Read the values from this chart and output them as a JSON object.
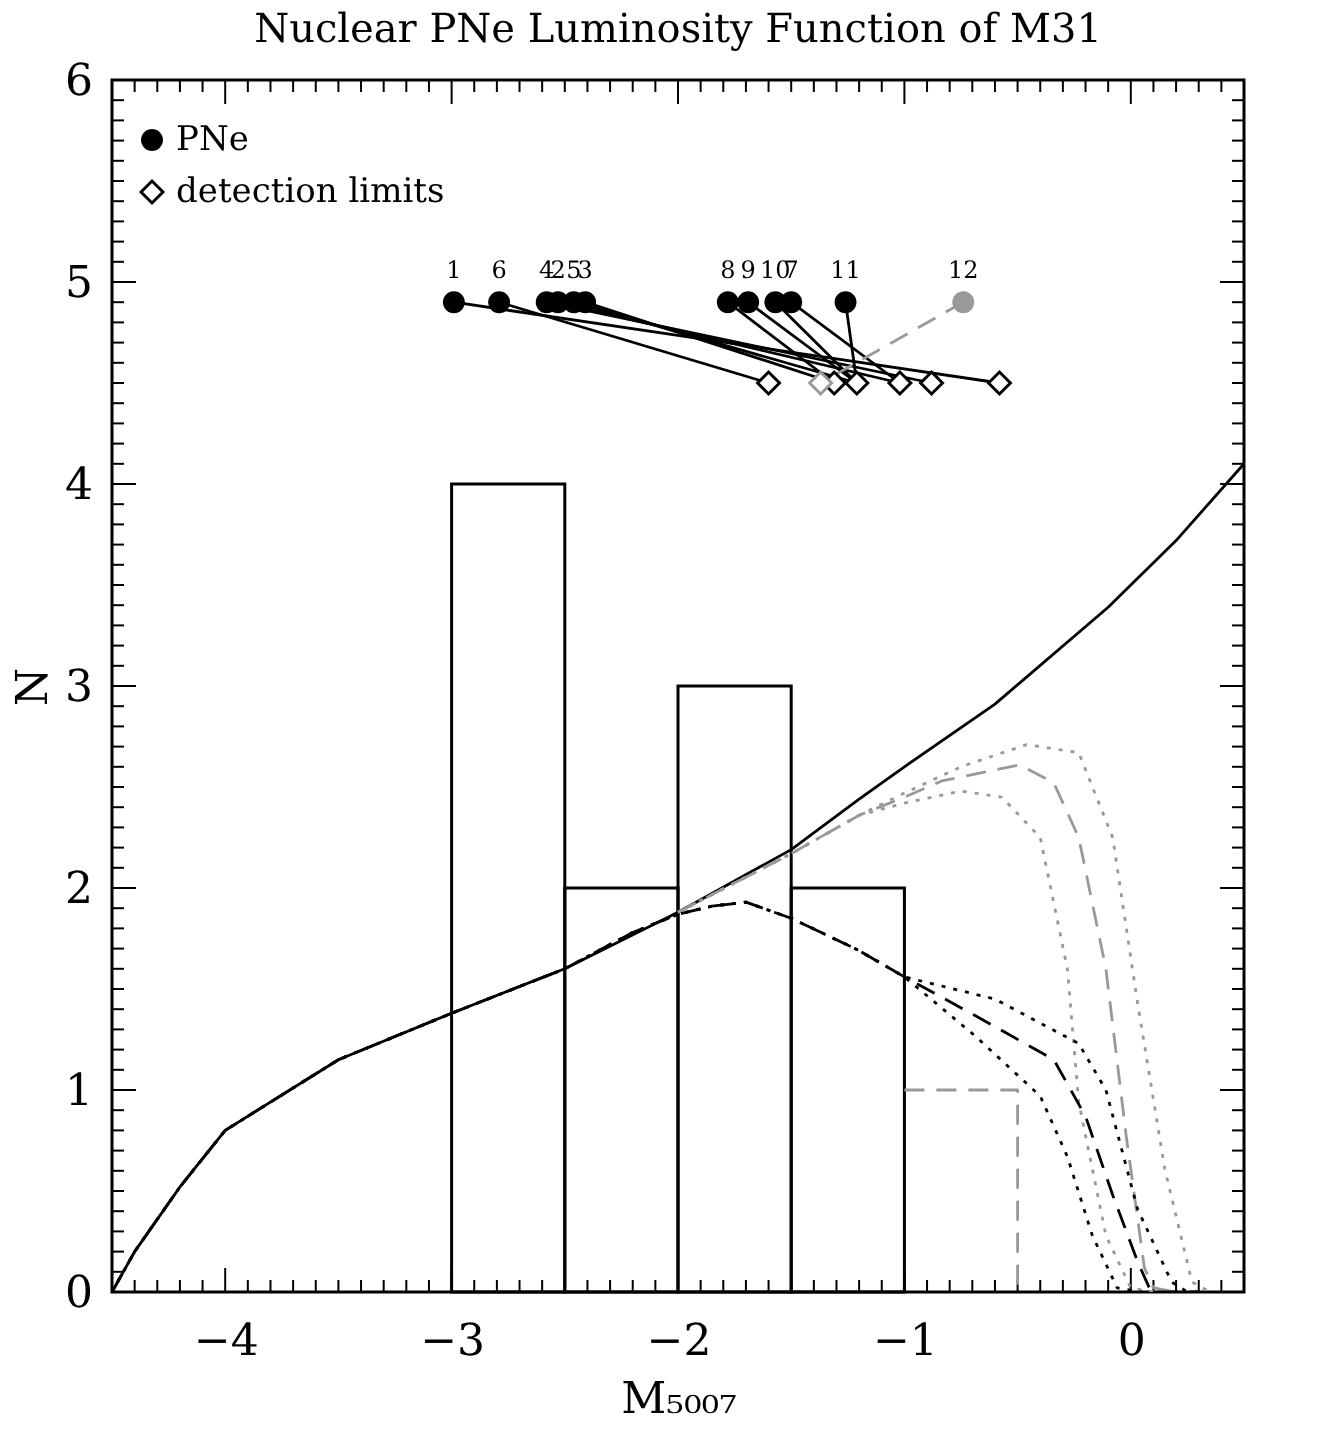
{
  "chart_data": {
    "type": "line",
    "title": "Nuclear PNe Luminosity Function of M31",
    "xlabel": "M₅₀₀₇",
    "ylabel": "N",
    "xlim": [
      -4.5,
      0.5
    ],
    "ylim": [
      0,
      6
    ],
    "xticks": [
      {
        "value": -4.4,
        "label": null
      },
      {
        "value": -4.3,
        "label": null
      },
      {
        "value": -4.2,
        "label": null
      },
      {
        "value": -4.1,
        "label": null
      },
      {
        "value": -4,
        "label": "−4"
      },
      {
        "value": -3.9,
        "label": null
      },
      {
        "value": -3.8,
        "label": null
      },
      {
        "value": -3.7,
        "label": null
      },
      {
        "value": -3.6,
        "label": null
      },
      {
        "value": -3.5,
        "label": null
      },
      {
        "value": -3.4,
        "label": null
      },
      {
        "value": -3.3,
        "label": null
      },
      {
        "value": -3.2,
        "label": null
      },
      {
        "value": -3.1,
        "label": null
      },
      {
        "value": -3,
        "label": "−3"
      },
      {
        "value": -2.9,
        "label": null
      },
      {
        "value": -2.8,
        "label": null
      },
      {
        "value": -2.7,
        "label": null
      },
      {
        "value": -2.6,
        "label": null
      },
      {
        "value": -2.5,
        "label": null
      },
      {
        "value": -2.4,
        "label": null
      },
      {
        "value": -2.3,
        "label": null
      },
      {
        "value": -2.2,
        "label": null
      },
      {
        "value": -2.1,
        "label": null
      },
      {
        "value": -2,
        "label": "−2"
      },
      {
        "value": -1.9,
        "label": null
      },
      {
        "value": -1.8,
        "label": null
      },
      {
        "value": -1.7,
        "label": null
      },
      {
        "value": -1.6,
        "label": null
      },
      {
        "value": -1.5,
        "label": null
      },
      {
        "value": -1.4,
        "label": null
      },
      {
        "value": -1.3,
        "label": null
      },
      {
        "value": -1.2,
        "label": null
      },
      {
        "value": -1.1,
        "label": null
      },
      {
        "value": -1,
        "label": "−1"
      },
      {
        "value": -0.9,
        "label": null
      },
      {
        "value": -0.8,
        "label": null
      },
      {
        "value": -0.7,
        "label": null
      },
      {
        "value": -0.6,
        "label": null
      },
      {
        "value": -0.5,
        "label": null
      },
      {
        "value": -0.4,
        "label": null
      },
      {
        "value": -0.3,
        "label": null
      },
      {
        "value": -0.2,
        "label": null
      },
      {
        "value": -0.1,
        "label": null
      },
      0,
      {
        "value": 0.1,
        "label": null
      },
      {
        "value": 0.2,
        "label": null
      },
      {
        "value": 0.3,
        "label": null
      },
      {
        "value": 0.4,
        "label": null
      }
    ],
    "yticks": [
      0,
      {
        "value": 0.1,
        "label": null
      },
      {
        "value": 0.2,
        "label": null
      },
      {
        "value": 0.3,
        "label": null
      },
      {
        "value": 0.4,
        "label": null
      },
      {
        "value": 0.5,
        "label": null
      },
      {
        "value": 0.6,
        "label": null
      },
      {
        "value": 0.7,
        "label": null
      },
      {
        "value": 0.8,
        "label": null
      },
      {
        "value": 0.9,
        "label": null
      },
      1,
      {
        "value": 1.1,
        "label": null
      },
      {
        "value": 1.2,
        "label": null
      },
      {
        "value": 1.3,
        "label": null
      },
      {
        "value": 1.4,
        "label": null
      },
      {
        "value": 1.5,
        "label": null
      },
      {
        "value": 1.6,
        "label": null
      },
      {
        "value": 1.7,
        "label": null
      },
      {
        "value": 1.8,
        "label": null
      },
      {
        "value": 1.9,
        "label": null
      },
      2,
      {
        "value": 2.1,
        "label": null
      },
      {
        "value": 2.2,
        "label": null
      },
      {
        "value": 2.3,
        "label": null
      },
      {
        "value": 2.4,
        "label": null
      },
      {
        "value": 2.5,
        "label": null
      },
      {
        "value": 2.6,
        "label": null
      },
      {
        "value": 2.7,
        "label": null
      },
      {
        "value": 2.8,
        "label": null
      },
      {
        "value": 2.9,
        "label": null
      },
      3,
      {
        "value": 3.1,
        "label": null
      },
      {
        "value": 3.2,
        "label": null
      },
      {
        "value": 3.3,
        "label": null
      },
      {
        "value": 3.4,
        "label": null
      },
      {
        "value": 3.5,
        "label": null
      },
      {
        "value": 3.6,
        "label": null
      },
      {
        "value": 3.7,
        "label": null
      },
      {
        "value": 3.8,
        "label": null
      },
      {
        "value": 3.9,
        "label": null
      },
      4,
      {
        "value": 4.1,
        "label": null
      },
      {
        "value": 4.2,
        "label": null
      },
      {
        "value": 4.3,
        "label": null
      },
      {
        "value": 4.4,
        "label": null
      },
      {
        "value": 4.5,
        "label": null
      },
      {
        "value": 4.6,
        "label": null
      },
      {
        "value": 4.7,
        "label": null
      },
      {
        "value": 4.8,
        "label": null
      },
      {
        "value": 4.9,
        "label": null
      },
      5,
      {
        "value": 5.1,
        "label": null
      },
      {
        "value": 5.2,
        "label": null
      },
      {
        "value": 5.3,
        "label": null
      },
      {
        "value": 5.4,
        "label": null
      },
      {
        "value": 5.5,
        "label": null
      },
      {
        "value": 5.6,
        "label": null
      },
      {
        "value": 5.7,
        "label": null
      },
      {
        "value": 5.8,
        "label": null
      },
      {
        "value": 5.9,
        "label": null
      },
      6
    ],
    "grid": false,
    "legend": "top left",
    "series": [
      {
        "type": "histogram",
        "color": "#000000",
        "bins": [
          -3,
          -2.5,
          -2,
          -1.5,
          -1
        ],
        "values": [
          4,
          2,
          3,
          2
        ]
      },
      {
        "color": "#999999",
        "line_style": "dashed",
        "x": [
          -1,
          -0.5,
          -0.5
        ],
        "values": [
          1,
          1,
          0
        ]
      },
      {
        "color": "#000000",
        "line_style": "solid",
        "x": [
          -4.5,
          -4.4,
          -4.2,
          -4,
          -3.5,
          -3,
          -2.5,
          -2,
          -1.5,
          -1.2,
          -1,
          -0.6,
          -0.1,
          0.2,
          0.5
        ],
        "values": [
          0,
          0.2,
          0.52,
          0.8,
          1.15,
          1.38,
          1.6,
          1.88,
          2.19,
          2.44,
          2.6,
          2.91,
          3.39,
          3.72,
          4.1
        ]
      },
      {
        "color": "#999999",
        "line_style": "dashed",
        "x": [
          -2,
          -1.5,
          -1.2,
          -1,
          -0.835,
          -0.49,
          -0.34,
          -0.23,
          -0.11,
          -0.02,
          0.06,
          0.1,
          0.2
        ],
        "values": [
          1.88,
          2.17,
          2.36,
          2.45,
          2.53,
          2.61,
          2.52,
          2.25,
          1.6,
          0.77,
          0.12,
          0.02,
          0
        ]
      },
      {
        "color": "#999999",
        "line_style": "dotted",
        "x": [
          -2,
          -1.5,
          -1.2,
          -1,
          -0.75,
          -0.46,
          -0.23,
          -0.08,
          0.03,
          0.15,
          0.27,
          0.35
        ],
        "values": [
          1.88,
          2.17,
          2.36,
          2.47,
          2.6,
          2.71,
          2.67,
          2.25,
          1.43,
          0.61,
          0.05,
          0
        ]
      },
      {
        "color": "#999999",
        "line_style": "dotted",
        "x": [
          -2,
          -1.5,
          -1.2,
          -1,
          -0.75,
          -0.57,
          -0.4,
          -0.28,
          -0.23,
          -0.11,
          0,
          0.1
        ],
        "values": [
          1.88,
          2.17,
          2.36,
          2.42,
          2.48,
          2.45,
          2.25,
          1.6,
          0.94,
          0.28,
          0.02,
          0
        ]
      },
      {
        "color": "#000000",
        "line_style": "dashed",
        "x": [
          -4.5,
          -4.4,
          -4.2,
          -4,
          -3.5,
          -3,
          -2.5,
          -2.2,
          -2,
          -1.85,
          -1.7,
          -1.5,
          -1.33,
          -1.2,
          -1,
          -0.69,
          -0.34,
          -0.2,
          -0.08,
          0.03,
          0.09,
          0.3
        ],
        "values": [
          0,
          0.2,
          0.52,
          0.8,
          1.15,
          1.38,
          1.6,
          1.78,
          1.87,
          1.91,
          1.93,
          1.85,
          1.76,
          1.69,
          1.56,
          1.37,
          1.15,
          0.87,
          0.48,
          0.15,
          0,
          0
        ]
      },
      {
        "color": "#000000",
        "line_style": "dotted",
        "x": [
          -4.5,
          -4.4,
          -4.2,
          -4,
          -3.5,
          -3,
          -2.5,
          -2.2,
          -2,
          -1.85,
          -1.7,
          -1.5,
          -1.33,
          -1.2,
          -1,
          -0.6,
          -0.23,
          -0.11,
          0.03,
          0.18,
          0.25
        ],
        "values": [
          0,
          0.2,
          0.52,
          0.8,
          1.15,
          1.38,
          1.6,
          1.78,
          1.87,
          1.91,
          1.93,
          1.85,
          1.76,
          1.69,
          1.56,
          1.45,
          1.23,
          1,
          0.41,
          0.05,
          0
        ]
      },
      {
        "color": "#000000",
        "line_style": "dotted",
        "x": [
          -4.5,
          -4.4,
          -4.2,
          -4,
          -3.5,
          -3,
          -2.5,
          -2.2,
          -2,
          -1.85,
          -1.7,
          -1.5,
          -1.33,
          -1.2,
          -1,
          -0.69,
          -0.4,
          -0.28,
          -0.17,
          -0.06,
          0.05
        ],
        "values": [
          0,
          0.2,
          0.52,
          0.8,
          1.15,
          1.38,
          1.6,
          1.78,
          1.87,
          1.91,
          1.93,
          1.85,
          1.76,
          1.69,
          1.56,
          1.27,
          0.97,
          0.67,
          0.28,
          0.02,
          0
        ]
      },
      {
        "color": "#000000",
        "line_style": "solid",
        "x": [
          -2.99,
          -0.58
        ],
        "values": [
          4.9,
          4.5
        ]
      },
      {
        "color": "#000000",
        "line_style": "solid",
        "x": [
          -2.79,
          -1.6
        ],
        "values": [
          4.9,
          4.5
        ]
      },
      {
        "color": "#000000",
        "line_style": "solid",
        "x": [
          -2.58,
          -0.88
        ],
        "values": [
          4.9,
          4.5
        ]
      },
      {
        "color": "#000000",
        "line_style": "solid",
        "x": [
          -2.53,
          -1.02
        ],
        "values": [
          4.9,
          4.5
        ]
      },
      {
        "color": "#000000",
        "line_style": "solid",
        "x": [
          -2.46,
          -1.21
        ],
        "values": [
          4.9,
          4.5
        ]
      },
      {
        "color": "#000000",
        "line_style": "solid",
        "x": [
          -2.41,
          -1.31
        ],
        "values": [
          4.9,
          4.5
        ]
      },
      {
        "color": "#000000",
        "line_style": "solid",
        "x": [
          -1.78,
          -1.31
        ],
        "values": [
          4.9,
          4.5
        ]
      },
      {
        "color": "#000000",
        "line_style": "solid",
        "x": [
          -1.69,
          -1.21
        ],
        "values": [
          4.9,
          4.5
        ]
      },
      {
        "color": "#000000",
        "line_style": "solid",
        "x": [
          -1.57,
          -1.21
        ],
        "values": [
          4.9,
          4.5
        ]
      },
      {
        "color": "#000000",
        "line_style": "solid",
        "x": [
          -1.5,
          -1.02
        ],
        "values": [
          4.9,
          4.5
        ]
      },
      {
        "color": "#000000",
        "line_style": "solid",
        "x": [
          -1.26,
          -1.21
        ],
        "values": [
          4.9,
          4.5
        ]
      },
      {
        "color": "#999999",
        "line_style": "dashed",
        "x": [
          -0.74,
          -1.37
        ],
        "values": [
          4.9,
          4.5
        ]
      },
      {
        "type": "scatter",
        "name": "PNe",
        "marker": "circle",
        "x": [
          -2.99,
          -2.79,
          -2.58,
          -2.53,
          -2.46,
          -2.41,
          -1.78,
          -1.69,
          -1.57,
          -1.5,
          -1.26,
          -0.74
        ],
        "values": [
          4.9,
          4.9,
          4.9,
          4.9,
          4.9,
          4.9,
          4.9,
          4.9,
          4.9,
          4.9,
          4.9,
          4.9
        ],
        "colors": [
          "#000000",
          "#000000",
          "#000000",
          "#000000",
          "#000000",
          "#000000",
          "#000000",
          "#000000",
          "#000000",
          "#000000",
          "#000000",
          "#999999"
        ]
      },
      {
        "type": "scatter",
        "name": "detection limits",
        "marker": "diamond",
        "x": [
          -0.58,
          -1.6,
          -0.88,
          -1.02,
          -1.21,
          -1.31,
          -1.37
        ],
        "values": [
          4.5,
          4.5,
          4.5,
          4.5,
          4.5,
          4.5,
          4.5
        ],
        "colors": [
          "#000000",
          "#000000",
          "#000000",
          "#000000",
          "#000000",
          "#000000",
          "#999999"
        ]
      }
    ],
    "annotations": [
      {
        "text": "1",
        "x": -2.99,
        "y": 4.9
      },
      {
        "text": "6",
        "x": -2.79,
        "y": 4.9
      },
      {
        "text": "4",
        "x": -2.58,
        "y": 4.9
      },
      {
        "text": "2",
        "x": -2.53,
        "y": 4.9
      },
      {
        "text": "5",
        "x": -2.46,
        "y": 4.9
      },
      {
        "text": "3",
        "x": -2.41,
        "y": 4.9
      },
      {
        "text": "8",
        "x": -1.78,
        "y": 4.9
      },
      {
        "text": "9",
        "x": -1.69,
        "y": 4.9
      },
      {
        "text": "10",
        "x": -1.57,
        "y": 4.9
      },
      {
        "text": "7",
        "x": -1.5,
        "y": 4.9
      },
      {
        "text": "11",
        "x": -1.26,
        "y": 4.9
      },
      {
        "text": "12",
        "x": -0.74,
        "y": 4.9
      }
    ]
  }
}
